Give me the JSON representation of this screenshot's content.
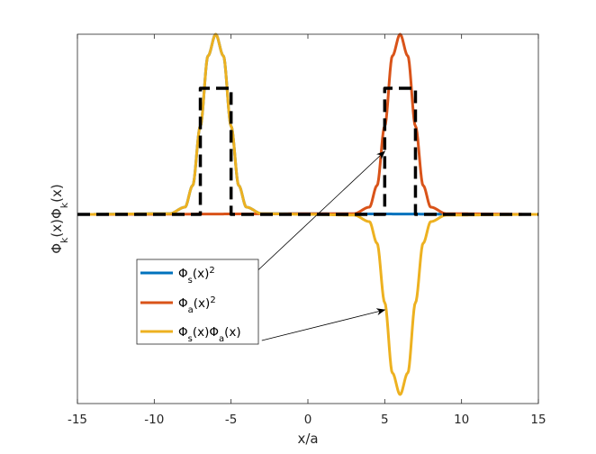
{
  "chart_data": {
    "type": "line",
    "title": "",
    "xlabel": "x/a",
    "ylabel_parts": [
      "Φ",
      "k",
      "(x)Φ",
      "k",
      "(x)"
    ],
    "xlim": [
      -15,
      15
    ],
    "ylim": [
      -1.05,
      1.0
    ],
    "xticks": [
      -15,
      -10,
      -5,
      0,
      5,
      10,
      15
    ],
    "xtick_labels": [
      "-15",
      "-10",
      "-5",
      "0",
      "5",
      "10",
      "15"
    ],
    "yticks_shown": false,
    "grid": false,
    "legend_location": "lower-left",
    "series": [
      {
        "name": "Φs(x)^2",
        "legend_parts": [
          "Φ",
          "s",
          "(x)",
          "2"
        ],
        "color": "#0072BD",
        "style": "solid",
        "x": [
          -15,
          -9,
          -8,
          -7.5,
          -7,
          -6.5,
          -6,
          -5.5,
          -5,
          -4.5,
          -4,
          -3,
          15
        ],
        "y": [
          0,
          0.004,
          0.04,
          0.16,
          0.49,
          0.88,
          1.0,
          0.88,
          0.49,
          0.16,
          0.04,
          0.004,
          0
        ]
      },
      {
        "name": "Φa(x)^2",
        "legend_parts": [
          "Φ",
          "a",
          "(x)",
          "2"
        ],
        "color": "#D95319",
        "style": "solid",
        "x": [
          -15,
          3,
          4,
          4.5,
          5,
          5.5,
          6,
          6.5,
          7,
          7.5,
          8,
          9,
          15
        ],
        "y": [
          0,
          0.004,
          0.04,
          0.16,
          0.49,
          0.88,
          1.0,
          0.88,
          0.49,
          0.16,
          0.04,
          0.004,
          0
        ]
      },
      {
        "name": "Φs(x)Φa(x)",
        "legend_parts": [
          "Φ",
          "s",
          "(x)Φ",
          "a",
          "(x)"
        ],
        "color": "#EDB120",
        "style": "solid",
        "x": [
          -15,
          -9,
          -8,
          -7.5,
          -7,
          -6.5,
          -6,
          -5.5,
          -5,
          -4.5,
          -4,
          -3,
          0,
          3,
          4,
          4.5,
          5,
          5.5,
          6,
          6.5,
          7,
          7.5,
          8,
          9,
          15
        ],
        "y": [
          0,
          0.004,
          0.04,
          0.16,
          0.49,
          0.88,
          1.0,
          0.88,
          0.49,
          0.16,
          0.04,
          0.004,
          0,
          -0.004,
          -0.04,
          -0.16,
          -0.49,
          -0.88,
          -1.0,
          -0.88,
          -0.49,
          -0.16,
          -0.04,
          -0.004,
          0
        ]
      },
      {
        "name": "",
        "color": "#000000",
        "style": "dashed",
        "x": [
          -15,
          -7,
          -7,
          -5,
          -5,
          5,
          5,
          7,
          7,
          15
        ],
        "y": [
          0,
          0,
          0.7,
          0.7,
          0,
          0,
          0.7,
          0.7,
          0,
          0
        ]
      }
    ],
    "annotations": [
      {
        "type": "arrow",
        "from": [
          -5.0,
          -0.45
        ],
        "to": [
          5.0,
          0.35
        ]
      },
      {
        "type": "arrow",
        "from": [
          -3.0,
          -0.7
        ],
        "to": [
          5.0,
          -0.53
        ]
      }
    ]
  }
}
